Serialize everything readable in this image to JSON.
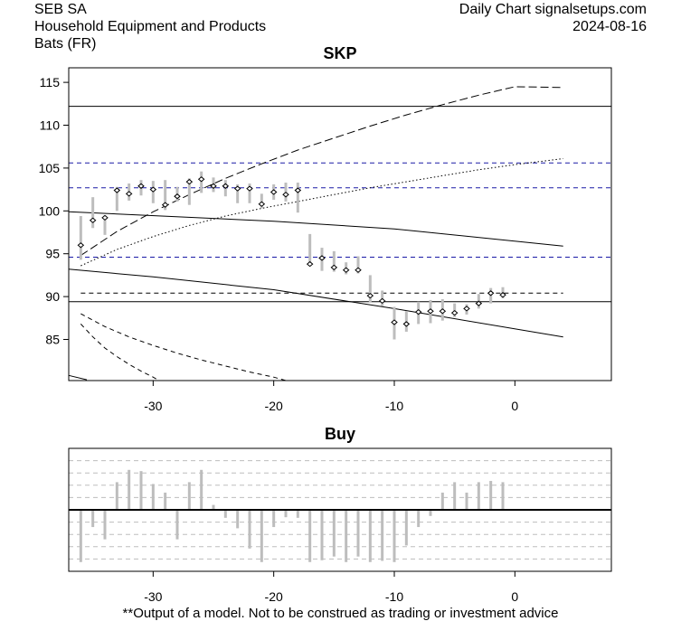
{
  "header": {
    "company": "SEB SA",
    "sector": "Household Equipment and Products",
    "exchange": "Bats (FR)",
    "source": "Daily Chart signalsetups.com",
    "date": "2024-08-16"
  },
  "footer": {
    "disclaimer": "**Output of a model. Not to be construed as trading or investment advice"
  },
  "chart_data": [
    {
      "type": "candlestick",
      "title": "SKP",
      "xlim": [
        -37,
        8
      ],
      "ylim": [
        80.2,
        116.7
      ],
      "x_ticks": [
        -30,
        -20,
        -10,
        0
      ],
      "y_ticks": [
        85,
        90,
        95,
        100,
        105,
        110,
        115
      ],
      "candles": [
        {
          "x": -36,
          "low": 94.3,
          "high": 99.4,
          "close": 96.0
        },
        {
          "x": -35,
          "low": 98.0,
          "high": 101.6,
          "close": 98.9
        },
        {
          "x": -34,
          "low": 97.2,
          "high": 99.5,
          "close": 99.2
        },
        {
          "x": -33,
          "low": 100.0,
          "high": 102.8,
          "close": 102.4
        },
        {
          "x": -32,
          "low": 101.2,
          "high": 103.2,
          "close": 102.0
        },
        {
          "x": -31,
          "low": 101.8,
          "high": 103.6,
          "close": 102.9
        },
        {
          "x": -30,
          "low": 100.9,
          "high": 103.5,
          "close": 102.5
        },
        {
          "x": -29,
          "low": 100.1,
          "high": 103.6,
          "close": 100.7
        },
        {
          "x": -28,
          "low": 101.1,
          "high": 102.8,
          "close": 101.7
        },
        {
          "x": -27,
          "low": 100.7,
          "high": 103.8,
          "close": 103.4
        },
        {
          "x": -26,
          "low": 102.1,
          "high": 104.6,
          "close": 103.7
        },
        {
          "x": -25,
          "low": 102.2,
          "high": 103.9,
          "close": 102.9
        },
        {
          "x": -24,
          "low": 101.7,
          "high": 103.6,
          "close": 102.9
        },
        {
          "x": -23,
          "low": 100.9,
          "high": 103.1,
          "close": 102.6
        },
        {
          "x": -22,
          "low": 100.9,
          "high": 103.2,
          "close": 102.6
        },
        {
          "x": -21,
          "low": 100.3,
          "high": 102.0,
          "close": 100.8
        },
        {
          "x": -20,
          "low": 101.3,
          "high": 103.1,
          "close": 102.2
        },
        {
          "x": -19,
          "low": 101.1,
          "high": 103.3,
          "close": 101.9
        },
        {
          "x": -18,
          "low": 99.8,
          "high": 103.3,
          "close": 102.4
        },
        {
          "x": -17,
          "low": 93.6,
          "high": 97.3,
          "close": 93.8
        },
        {
          "x": -16,
          "low": 93.0,
          "high": 95.7,
          "close": 94.5
        },
        {
          "x": -15,
          "low": 92.9,
          "high": 95.3,
          "close": 93.4
        },
        {
          "x": -14,
          "low": 92.6,
          "high": 94.0,
          "close": 93.1
        },
        {
          "x": -13,
          "low": 92.7,
          "high": 94.7,
          "close": 93.1
        },
        {
          "x": -12,
          "low": 89.3,
          "high": 92.5,
          "close": 90.1
        },
        {
          "x": -11,
          "low": 88.9,
          "high": 90.7,
          "close": 89.5
        },
        {
          "x": -10,
          "low": 85.0,
          "high": 88.8,
          "close": 87.0
        },
        {
          "x": -9,
          "low": 85.9,
          "high": 88.3,
          "close": 86.8
        },
        {
          "x": -8,
          "low": 86.8,
          "high": 89.4,
          "close": 88.2
        },
        {
          "x": -7,
          "low": 86.9,
          "high": 89.6,
          "close": 88.3
        },
        {
          "x": -6,
          "low": 87.2,
          "high": 89.7,
          "close": 88.3
        },
        {
          "x": -5,
          "low": 87.6,
          "high": 89.2,
          "close": 88.1
        },
        {
          "x": -4,
          "low": 87.9,
          "high": 89.1,
          "close": 88.6
        },
        {
          "x": -3,
          "low": 88.6,
          "high": 90.3,
          "close": 89.2
        },
        {
          "x": -2,
          "low": 89.2,
          "high": 91.0,
          "close": 90.4
        },
        {
          "x": -1,
          "low": 89.8,
          "high": 91.1,
          "close": 90.2
        }
      ],
      "hlines_solid": [
        112.2,
        89.4
      ],
      "hlines_dashed_blue": [
        105.6,
        102.7,
        94.6
      ],
      "hline_dashed_black": {
        "value": 90.4,
        "x_from": -36,
        "x_to": 4
      },
      "curves": [
        {
          "name": "upper-channel-solid",
          "style": "solid",
          "x": [
            -37,
            -20,
            -10,
            4
          ],
          "y": [
            99.9,
            98.8,
            97.9,
            95.9
          ]
        },
        {
          "name": "lower-channel-solid",
          "style": "solid",
          "x": [
            -37,
            -30,
            -20,
            -10,
            4
          ],
          "y": [
            93.2,
            92.3,
            90.8,
            88.6,
            85.3
          ]
        },
        {
          "name": "upper-long-dashed",
          "style": "longdash",
          "x": [
            -36,
            -33,
            -30,
            -27,
            -24,
            -21,
            -18,
            -15,
            -12,
            -9,
            -6,
            -3,
            0,
            4
          ],
          "y": [
            94.8,
            97.6,
            99.9,
            101.9,
            103.8,
            105.5,
            107.1,
            108.5,
            109.9,
            111.2,
            112.4,
            113.5,
            114.5,
            114.4
          ]
        },
        {
          "name": "upper-dotted",
          "style": "dotted",
          "x": [
            -36,
            -33,
            -30,
            -27,
            -24,
            -21,
            -18,
            -15,
            -12,
            -9,
            -6,
            -3,
            0,
            4
          ],
          "y": [
            93.6,
            95.5,
            97.0,
            98.3,
            99.4,
            100.3,
            101.1,
            101.9,
            102.7,
            103.4,
            104.1,
            104.8,
            105.4,
            106.1
          ]
        },
        {
          "name": "lower-short-dashed-1",
          "style": "dashed",
          "x": [
            -36,
            -34,
            -32,
            -30,
            -28,
            -26,
            -24,
            -22,
            -20,
            -19
          ],
          "y": [
            88.0,
            86.5,
            85.3,
            84.3,
            83.4,
            82.6,
            81.9,
            81.2,
            80.6,
            80.2
          ]
        },
        {
          "name": "lower-short-dashed-2",
          "style": "dashed",
          "x": [
            -36,
            -35,
            -34,
            -33,
            -32,
            -31,
            -30,
            -29.5
          ],
          "y": [
            86.8,
            85.3,
            84.0,
            83.0,
            82.1,
            81.3,
            80.6,
            80.2
          ]
        },
        {
          "name": "lower-solid-stub",
          "style": "solid",
          "x": [
            -37,
            -35.5
          ],
          "y": [
            80.8,
            80.3
          ]
        }
      ]
    },
    {
      "type": "bar",
      "title": "Buy",
      "xlim": [
        -37,
        8
      ],
      "ylim": [
        -1,
        1
      ],
      "x_ticks": [
        -30,
        -20,
        -10,
        0
      ],
      "gridlines": [
        0.8,
        0.6,
        0.4,
        0.2,
        -0.2,
        -0.4,
        -0.6,
        -0.8
      ],
      "bars": [
        {
          "x": -36,
          "value": -0.85
        },
        {
          "x": -35,
          "value": -0.28
        },
        {
          "x": -34,
          "value": -0.48
        },
        {
          "x": -33,
          "value": 0.45
        },
        {
          "x": -32,
          "value": 0.65
        },
        {
          "x": -31,
          "value": 0.63
        },
        {
          "x": -30,
          "value": 0.42
        },
        {
          "x": -29,
          "value": 0.28
        },
        {
          "x": -28,
          "value": -0.48
        },
        {
          "x": -27,
          "value": 0.45
        },
        {
          "x": -26,
          "value": 0.65
        },
        {
          "x": -25,
          "value": 0.08
        },
        {
          "x": -24,
          "value": -0.13
        },
        {
          "x": -23,
          "value": -0.3
        },
        {
          "x": -22,
          "value": -0.63
        },
        {
          "x": -21,
          "value": -0.85
        },
        {
          "x": -20,
          "value": -0.28
        },
        {
          "x": -19,
          "value": -0.12
        },
        {
          "x": -18,
          "value": -0.13
        },
        {
          "x": -17,
          "value": -0.85
        },
        {
          "x": -16,
          "value": -0.82
        },
        {
          "x": -15,
          "value": -0.76
        },
        {
          "x": -14,
          "value": -0.85
        },
        {
          "x": -13,
          "value": -0.76
        },
        {
          "x": -12,
          "value": -0.85
        },
        {
          "x": -11,
          "value": -0.83
        },
        {
          "x": -10,
          "value": -0.85
        },
        {
          "x": -9,
          "value": -0.58
        },
        {
          "x": -8,
          "value": -0.28
        },
        {
          "x": -7,
          "value": -0.1
        },
        {
          "x": -6,
          "value": 0.28
        },
        {
          "x": -5,
          "value": 0.45
        },
        {
          "x": -4,
          "value": 0.28
        },
        {
          "x": -3,
          "value": 0.45
        },
        {
          "x": -2,
          "value": 0.47
        },
        {
          "x": -1,
          "value": 0.45
        }
      ]
    }
  ]
}
